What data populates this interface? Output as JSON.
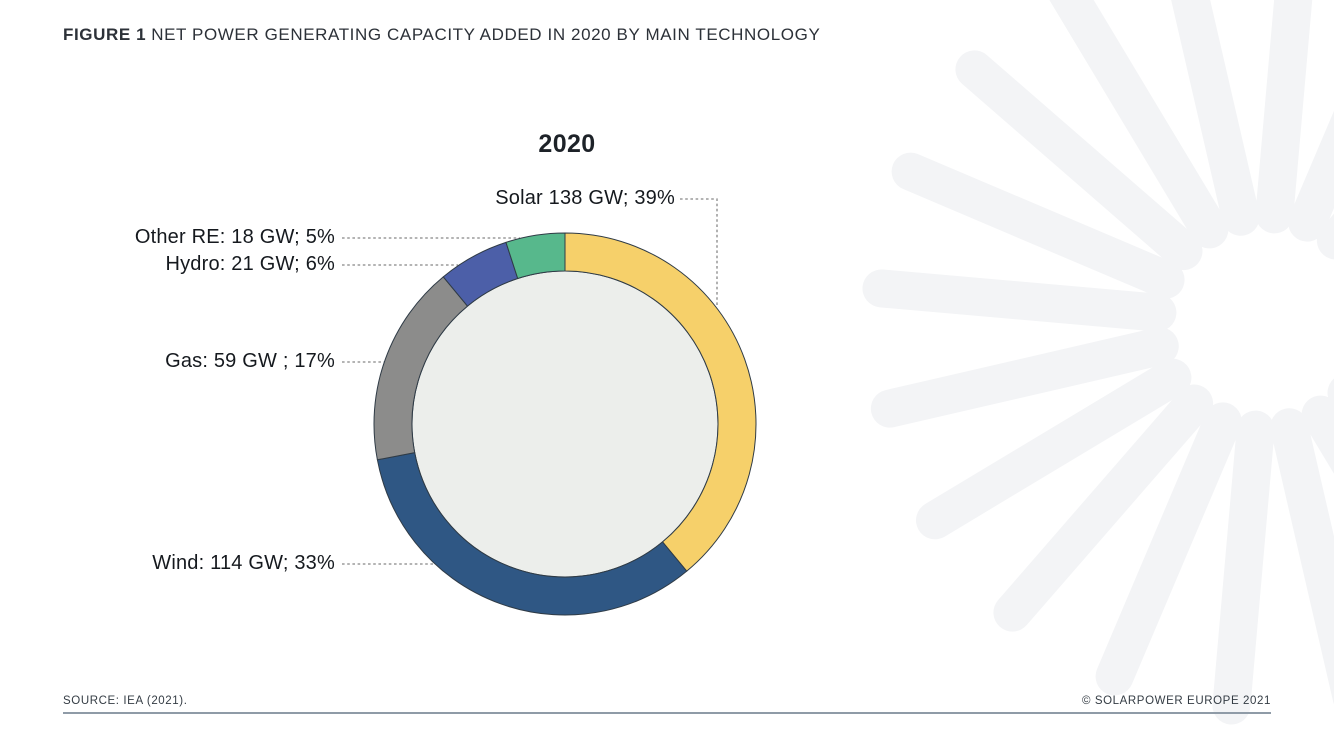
{
  "figure": {
    "label": "FIGURE 1",
    "title": "NET POWER GENERATING CAPACITY ADDED IN 2020 BY MAIN TECHNOLOGY"
  },
  "chart_title": "2020",
  "chart_data": {
    "type": "pie",
    "style": "donut",
    "title": "2020",
    "unit": "GW",
    "direction": "clockwise",
    "start_angle_deg": 0,
    "segments": [
      {
        "label": "Solar",
        "value_gw": 138,
        "percent": 39,
        "color": "#F6D06A",
        "callout": "Solar 138 GW; 39%"
      },
      {
        "label": "Wind",
        "value_gw": 114,
        "percent": 33,
        "color": "#2F5784",
        "callout": "Wind: 114 GW; 33%"
      },
      {
        "label": "Gas",
        "value_gw": 59,
        "percent": 17,
        "color": "#8C8C8B",
        "callout": "Gas: 59 GW ; 17%"
      },
      {
        "label": "Hydro",
        "value_gw": 21,
        "percent": 6,
        "color": "#4C5FA8",
        "callout": "Hydro: 21 GW; 6%"
      },
      {
        "label": "Other RE",
        "value_gw": 18,
        "percent": 5,
        "color": "#57B88C",
        "callout": "Other RE: 18 GW; 5%"
      }
    ],
    "inner_disc_color": "#ECEEEB",
    "outline_color": "#2F3B46",
    "leader_line_color": "#878787"
  },
  "footer": {
    "source": "SOURCE: IEA (2021).",
    "copyright": "© SOLARPOWER EUROPE 2021"
  },
  "decoration": {
    "sunburst_color": "#F3F4F6"
  }
}
